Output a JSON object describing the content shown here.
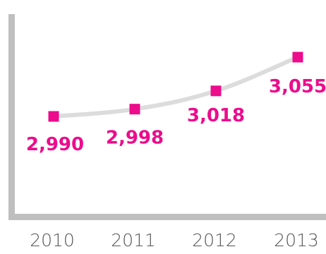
{
  "chart_data": {
    "type": "line",
    "categories": [
      "2010",
      "2011",
      "2012",
      "2013"
    ],
    "series": [
      {
        "values": [
          2990,
          2998,
          3018,
          3055
        ],
        "labels": [
          "2,990",
          "2,998",
          "3,018",
          "3,055"
        ]
      }
    ],
    "title": "",
    "xlabel": "",
    "ylabel": "",
    "ylim": [
      2940,
      3085
    ],
    "grid": false,
    "legend": "none",
    "colors": {
      "line": "#dcdcdc",
      "marker": "#ec0c8c",
      "label": "#ec0c8c",
      "axis": "#bfbfbf",
      "tick_text": "#555555"
    }
  }
}
